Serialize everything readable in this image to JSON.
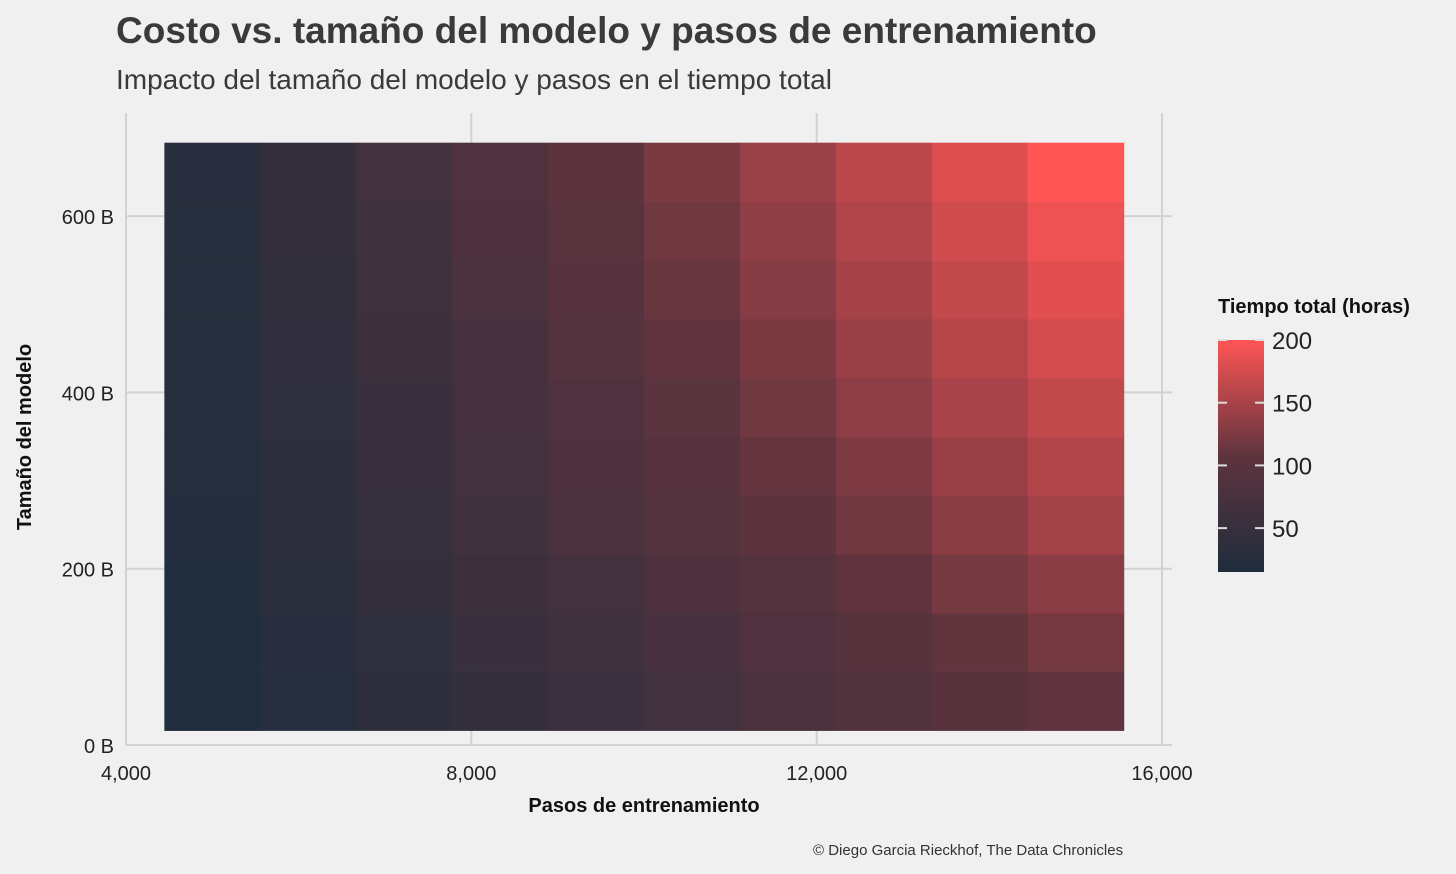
{
  "header": {
    "title": "Costo vs. tamaño del modelo y pasos de entrenamiento",
    "subtitle": "Impacto del tamaño del modelo y pasos en el tiempo total"
  },
  "caption": "© Diego Garcia Rieckhof, The Data Chronicles",
  "colors": {
    "background": "#f0f0f0",
    "grid": "#d2d2d2",
    "low": "#1f2d3d",
    "high": "#ff5555"
  },
  "chart_data": {
    "type": "heatmap",
    "title": "Costo vs. tamaño del modelo y pasos de entrenamiento",
    "subtitle": "Impacto del tamaño del modelo y pasos en el tiempo total",
    "xlabel": "Pasos de entrenamiento",
    "ylabel": "Tamaño del modelo",
    "xlim": [
      4000,
      16000
    ],
    "ylim": [
      0,
      700
    ],
    "x_ticks": [
      {
        "value": 4000,
        "label": "4,000"
      },
      {
        "value": 8000,
        "label": "8,000"
      },
      {
        "value": 12000,
        "label": "12,000"
      },
      {
        "value": 16000,
        "label": "16,000"
      }
    ],
    "y_ticks": [
      {
        "value": 0,
        "label": "0 B"
      },
      {
        "value": 200,
        "label": "200 B"
      },
      {
        "value": 400,
        "label": "400 B"
      },
      {
        "value": 600,
        "label": "600 B"
      }
    ],
    "x": [
      5000,
      6111,
      7222,
      8333,
      9444,
      10556,
      11667,
      12778,
      13889,
      15000
    ],
    "y": [
      50,
      117,
      183,
      250,
      317,
      383,
      450,
      517,
      583,
      650
    ],
    "legend": {
      "title": "Tiempo total (horas)",
      "range": [
        15,
        200
      ],
      "ticks": [
        50,
        100,
        150,
        200
      ]
    },
    "grid": true,
    "legend_position": "right",
    "values": [
      [
        15,
        25,
        36,
        46,
        56,
        67,
        77,
        88,
        98,
        108
      ],
      [
        17,
        28,
        40,
        51,
        63,
        74,
        86,
        97,
        109,
        120
      ],
      [
        19,
        32,
        44,
        57,
        70,
        82,
        95,
        108,
        121,
        133
      ],
      [
        21,
        35,
        49,
        63,
        77,
        91,
        105,
        119,
        133,
        147
      ],
      [
        22,
        37,
        52,
        67,
        82,
        96,
        111,
        126,
        141,
        156
      ],
      [
        23,
        39,
        55,
        71,
        87,
        102,
        118,
        134,
        150,
        165
      ],
      [
        25,
        41,
        58,
        74,
        91,
        108,
        124,
        141,
        157,
        174
      ],
      [
        26,
        43,
        61,
        78,
        96,
        113,
        130,
        148,
        165,
        183
      ],
      [
        27,
        45,
        63,
        82,
        100,
        118,
        136,
        154,
        172,
        191
      ],
      [
        28,
        47,
        66,
        85,
        104,
        123,
        142,
        161,
        180,
        200
      ]
    ]
  }
}
